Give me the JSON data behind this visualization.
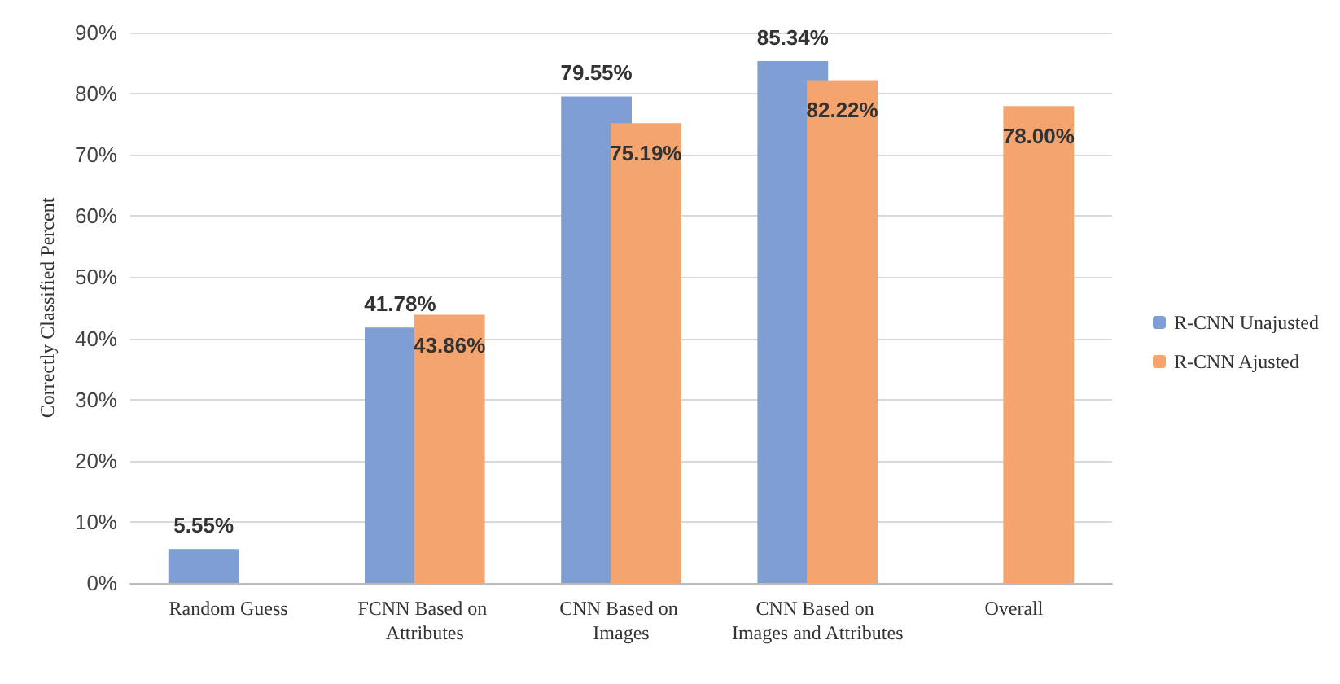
{
  "chart_data": {
    "type": "bar",
    "ylabel": "Correctly Classified Percent",
    "categories": [
      "Random Guess",
      "FCNN Based on Attributes",
      "CNN Based on Images",
      "CNN Based on Images and Attributes",
      "Overall"
    ],
    "series": [
      {
        "name": "R-CNN Unajusted",
        "color": "#7f9fd4",
        "values": [
          5.55,
          41.78,
          79.55,
          85.34,
          null
        ],
        "value_labels": [
          "5.55%",
          "41.78%",
          "79.55%",
          "85.34%",
          null
        ]
      },
      {
        "name": "R-CNN Ajusted",
        "color": "#f4a46f",
        "values": [
          null,
          43.86,
          75.19,
          82.22,
          78.0
        ],
        "value_labels": [
          null,
          "43.86%",
          "75.19%",
          "82.22%",
          "78.00%"
        ]
      }
    ],
    "ylim": [
      0,
      90
    ],
    "yticks": [
      {
        "value": 0,
        "label": "0%"
      },
      {
        "value": 10,
        "label": "10%"
      },
      {
        "value": 20,
        "label": "20%"
      },
      {
        "value": 30,
        "label": "30%"
      },
      {
        "value": 40,
        "label": "40%"
      },
      {
        "value": 50,
        "label": "50%"
      },
      {
        "value": 60,
        "label": "60%"
      },
      {
        "value": 70,
        "label": "70%"
      },
      {
        "value": 80,
        "label": "80%"
      },
      {
        "value": 90,
        "label": "90%"
      }
    ],
    "grid": "y",
    "legend": "right"
  }
}
